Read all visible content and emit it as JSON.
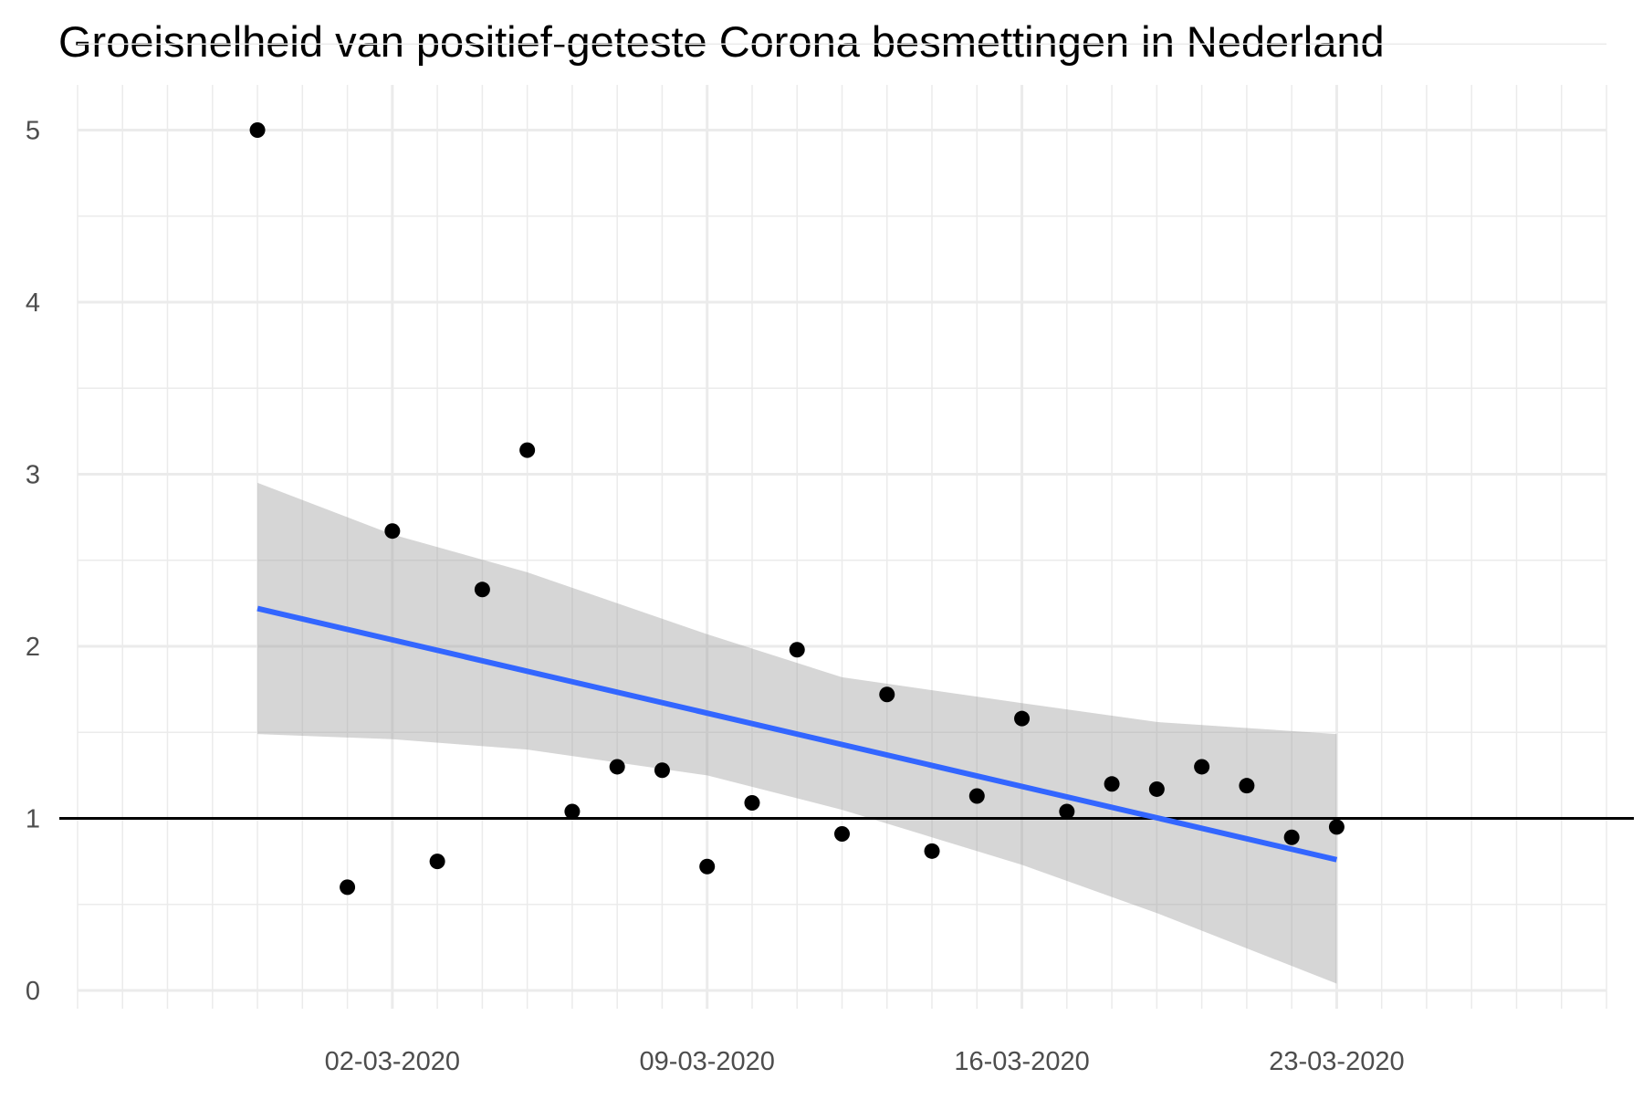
{
  "chart_data": {
    "type": "scatter",
    "title": "Groeisnelheid van positief-geteste Corona besmettingen in Nederland",
    "xlabel": "",
    "ylabel": "",
    "x_type": "date",
    "xlim": [
      "2020-02-24",
      "2020-03-29"
    ],
    "ylim": [
      0,
      5
    ],
    "x_ticks": [
      "2020-03-02",
      "2020-03-09",
      "2020-03-16",
      "2020-03-23"
    ],
    "x_tick_labels": [
      "02-03-2020",
      "09-03-2020",
      "16-03-2020",
      "23-03-2020"
    ],
    "y_ticks": [
      0,
      1,
      2,
      3,
      4,
      5
    ],
    "y_tick_labels": [
      "0",
      "1",
      "2",
      "3",
      "4",
      "5"
    ],
    "grid": true,
    "reference_line": {
      "y": 1,
      "color": "#000000"
    },
    "series": [
      {
        "type": "scatter",
        "color": "#000000",
        "points": [
          {
            "x": "2020-02-28",
            "y": 5.0
          },
          {
            "x": "2020-03-01",
            "y": 0.6
          },
          {
            "x": "2020-03-02",
            "y": 2.67
          },
          {
            "x": "2020-03-03",
            "y": 0.75
          },
          {
            "x": "2020-03-04",
            "y": 2.33
          },
          {
            "x": "2020-03-05",
            "y": 3.14
          },
          {
            "x": "2020-03-06",
            "y": 1.04
          },
          {
            "x": "2020-03-07",
            "y": 1.3
          },
          {
            "x": "2020-03-08",
            "y": 1.28
          },
          {
            "x": "2020-03-09",
            "y": 0.72
          },
          {
            "x": "2020-03-10",
            "y": 1.09
          },
          {
            "x": "2020-03-11",
            "y": 1.98
          },
          {
            "x": "2020-03-12",
            "y": 0.91
          },
          {
            "x": "2020-03-13",
            "y": 1.72
          },
          {
            "x": "2020-03-14",
            "y": 0.81
          },
          {
            "x": "2020-03-15",
            "y": 1.13
          },
          {
            "x": "2020-03-16",
            "y": 1.58
          },
          {
            "x": "2020-03-17",
            "y": 1.04
          },
          {
            "x": "2020-03-18",
            "y": 1.2
          },
          {
            "x": "2020-03-19",
            "y": 1.17
          },
          {
            "x": "2020-03-20",
            "y": 1.3
          },
          {
            "x": "2020-03-21",
            "y": 1.19
          },
          {
            "x": "2020-03-22",
            "y": 0.89
          },
          {
            "x": "2020-03-23",
            "y": 0.95
          }
        ]
      },
      {
        "type": "line",
        "color": "#3366ff",
        "points": [
          {
            "x": "2020-02-28",
            "y": 2.22
          },
          {
            "x": "2020-03-23",
            "y": 0.76
          }
        ]
      },
      {
        "type": "area",
        "color": "#999999",
        "upper": [
          {
            "x": "2020-02-28",
            "y": 2.95
          },
          {
            "x": "2020-03-02",
            "y": 2.65
          },
          {
            "x": "2020-03-05",
            "y": 2.43
          },
          {
            "x": "2020-03-09",
            "y": 2.07
          },
          {
            "x": "2020-03-12",
            "y": 1.82
          },
          {
            "x": "2020-03-16",
            "y": 1.67
          },
          {
            "x": "2020-03-19",
            "y": 1.56
          },
          {
            "x": "2020-03-23",
            "y": 1.49
          }
        ],
        "lower": [
          {
            "x": "2020-02-28",
            "y": 1.49
          },
          {
            "x": "2020-03-02",
            "y": 1.46
          },
          {
            "x": "2020-03-05",
            "y": 1.4
          },
          {
            "x": "2020-03-09",
            "y": 1.25
          },
          {
            "x": "2020-03-12",
            "y": 1.05
          },
          {
            "x": "2020-03-16",
            "y": 0.73
          },
          {
            "x": "2020-03-19",
            "y": 0.45
          },
          {
            "x": "2020-03-23",
            "y": 0.04
          }
        ]
      }
    ]
  }
}
